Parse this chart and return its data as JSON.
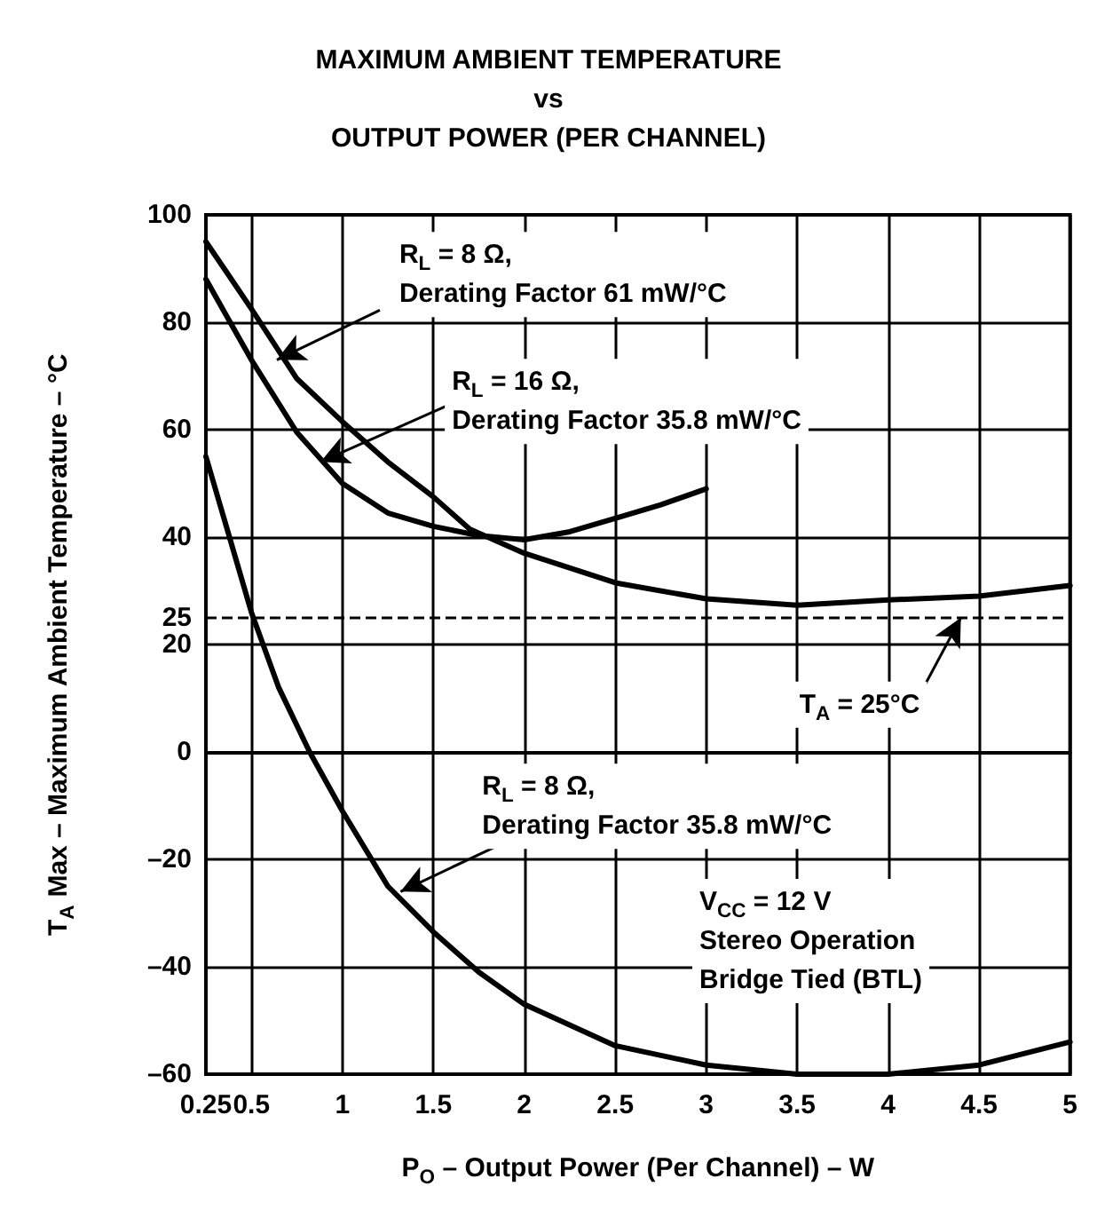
{
  "chart_data": {
    "type": "line",
    "title": "MAXIMUM AMBIENT TEMPERATURE\nvs\nOUTPUT POWER (PER CHANNEL)",
    "xlabel": "P$_{O}$ – Output Power (Per Channel) – W",
    "ylabel": "T$_{A}$ Max – Maximum Ambient Temperature – °C",
    "series": [
      {
        "color": "#000000",
        "x": [
          0.25,
          0.5,
          0.75,
          1,
          1.25,
          1.5,
          1.7,
          2,
          2.5,
          3,
          3.5,
          4,
          4.5,
          5
        ],
        "values": [
          95,
          82.5,
          69.5,
          61.5,
          54,
          47.5,
          41.5,
          37,
          31.5,
          28.5,
          27.3,
          28.3,
          29,
          31
        ]
      },
      {
        "color": "#000000",
        "x": [
          0.25,
          0.5,
          0.75,
          1,
          1.25,
          1.5,
          1.75,
          2,
          2.25,
          2.5,
          2.75,
          3
        ],
        "values": [
          88,
          73,
          59.5,
          50,
          44.5,
          42,
          40.3,
          39.5,
          41,
          43.5,
          46,
          49
        ]
      },
      {
        "color": "#000000",
        "x": [
          0.25,
          0.5,
          0.65,
          0.82,
          1,
          1.25,
          1.5,
          1.75,
          2,
          2.5,
          3,
          3.5,
          3.75,
          4,
          4.5,
          5
        ],
        "values": [
          55,
          26,
          12,
          0,
          -11,
          -25,
          -33.5,
          -41,
          -47,
          -54.7,
          -58.3,
          -60,
          -60,
          -60,
          -58.3,
          -54
        ]
      }
    ],
    "xlim": [
      0.25,
      5
    ],
    "xticks": [
      0.25,
      0.5,
      1,
      1.5,
      2,
      2.5,
      3,
      3.5,
      4,
      4.5,
      5
    ],
    "ylim": [
      -60,
      100
    ],
    "yticks": [
      {
        "value": -60,
        "label": "–60"
      },
      {
        "value": -40,
        "label": "–40"
      },
      {
        "value": -20,
        "label": "–20"
      },
      0,
      20,
      25,
      40,
      60,
      80,
      100
    ],
    "ref_lines": [
      {
        "axis": "y",
        "value": 25,
        "line_style": "dashed"
      }
    ],
    "grid": true,
    "marker": "none",
    "line_style": "solid",
    "annotations": [
      {
        "text": "R$_{L}$ = 8 Ω,\nDerating Factor 61 mW/°C",
        "x": 0.64,
        "y": 73
      },
      {
        "text": "R$_{L}$ = 16 Ω,\nDerating Factor 35.8 mW/°C",
        "x": 0.88,
        "y": 54
      },
      {
        "text": "T$_{A}$ = 25°C",
        "x": 4.4,
        "y": 25
      },
      {
        "text": "R$_{L}$ = 8 Ω,\nDerating Factor 35.8 mW/°C",
        "x": 1.32,
        "y": -26
      },
      "V$_{CC}$ = 12 V\nStereo Operation\nBridge Tied (BTL)"
    ]
  }
}
